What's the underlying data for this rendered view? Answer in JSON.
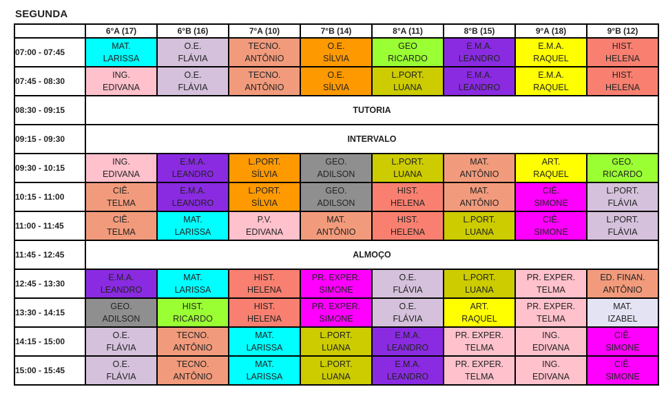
{
  "day": "SEGUNDA",
  "columns": [
    "6°A (17)",
    "6°B (16)",
    "7°A (10)",
    "7°B (14)",
    "8°A (11)",
    "8°B (15)",
    "9°A (18)",
    "9°B (12)"
  ],
  "rows": [
    {
      "time": "07:00 - 07:45",
      "cells": [
        {
          "subject": "MAT.",
          "teacher": "LARISSA",
          "color": "azul"
        },
        {
          "subject": "O.E.",
          "teacher": "FLÁVIA",
          "color": "lilas"
        },
        {
          "subject": "TECNO.",
          "teacher": "ANTÔNIO",
          "color": "salmao"
        },
        {
          "subject": "O.E.",
          "teacher": "SÍLVIA",
          "color": "laranja"
        },
        {
          "subject": "GEO",
          "teacher": "RICARDO",
          "color": "verde"
        },
        {
          "subject": "E.M.A.",
          "teacher": "LEANDRO",
          "color": "roxo"
        },
        {
          "subject": "E.M.A.",
          "teacher": "RAQUEL",
          "color": "amarelo"
        },
        {
          "subject": "HIST.",
          "teacher": "HELENA",
          "color": "vermelho"
        }
      ]
    },
    {
      "time": "07:45 - 08:30",
      "cells": [
        {
          "subject": "ING.",
          "teacher": "EDIVANA",
          "color": "rosa"
        },
        {
          "subject": "O.E.",
          "teacher": "FLÁVIA",
          "color": "lilas"
        },
        {
          "subject": "TECNO.",
          "teacher": "ANTÔNIO",
          "color": "salmao"
        },
        {
          "subject": "O.E.",
          "teacher": "SÍLVIA",
          "color": "laranja"
        },
        {
          "subject": "L.PORT.",
          "teacher": "LUANA",
          "color": "oliva"
        },
        {
          "subject": "E.M.A.",
          "teacher": "LEANDRO",
          "color": "roxo"
        },
        {
          "subject": "E.M.A.",
          "teacher": "RAQUEL",
          "color": "amarelo"
        },
        {
          "subject": "HIST.",
          "teacher": "HELENA",
          "color": "vermelho"
        }
      ]
    },
    {
      "time": "08:30 - 09:15",
      "span": "TUTORIA"
    },
    {
      "time": "09:15 - 09:30",
      "span": "INTERVALO"
    },
    {
      "time": "09:30 - 10:15",
      "cells": [
        {
          "subject": "ING.",
          "teacher": "EDIVANA",
          "color": "rosa"
        },
        {
          "subject": "E.M.A.",
          "teacher": "LEANDRO",
          "color": "roxo"
        },
        {
          "subject": "L.PORT.",
          "teacher": "SÍLVIA",
          "color": "laranja"
        },
        {
          "subject": "GEO.",
          "teacher": "ADILSON",
          "color": "cinza"
        },
        {
          "subject": "L.PORT.",
          "teacher": "LUANA",
          "color": "oliva"
        },
        {
          "subject": "MAT.",
          "teacher": "ANTÔNIO",
          "color": "salmao"
        },
        {
          "subject": "ART.",
          "teacher": "RAQUEL",
          "color": "amarelo"
        },
        {
          "subject": "GEO.",
          "teacher": "RICARDO",
          "color": "verde"
        }
      ]
    },
    {
      "time": "10:15 - 11:00",
      "cells": [
        {
          "subject": "CIÊ.",
          "teacher": "TELMA",
          "color": "salmao"
        },
        {
          "subject": "E.M.A.",
          "teacher": "LEANDRO",
          "color": "roxo"
        },
        {
          "subject": "L.PORT.",
          "teacher": "SÍLVIA",
          "color": "laranja"
        },
        {
          "subject": "GEO.",
          "teacher": "ADILSON",
          "color": "cinza"
        },
        {
          "subject": "HIST.",
          "teacher": "HELENA",
          "color": "vermelho"
        },
        {
          "subject": "MAT.",
          "teacher": "ANTÔNIO",
          "color": "salmao"
        },
        {
          "subject": "CIÊ.",
          "teacher": "SIMONE",
          "color": "magenta"
        },
        {
          "subject": "L.PORT.",
          "teacher": "FLÁVIA",
          "color": "lilas"
        }
      ]
    },
    {
      "time": "11:00 - 11:45",
      "cells": [
        {
          "subject": "CIÊ.",
          "teacher": "TELMA",
          "color": "salmao"
        },
        {
          "subject": "MAT.",
          "teacher": "LARISSA",
          "color": "azul"
        },
        {
          "subject": "P.V.",
          "teacher": "EDIVANA",
          "color": "rosa"
        },
        {
          "subject": "MAT.",
          "teacher": "ANTÔNIO",
          "color": "salmao"
        },
        {
          "subject": "HIST.",
          "teacher": "HELENA",
          "color": "vermelho"
        },
        {
          "subject": "L.PORT.",
          "teacher": "LUANA",
          "color": "oliva"
        },
        {
          "subject": "CIÊ.",
          "teacher": "SIMONE",
          "color": "magenta"
        },
        {
          "subject": "L.PORT.",
          "teacher": "FLÁVIA",
          "color": "lilas"
        }
      ]
    },
    {
      "time": "11:45 - 12:45",
      "span": "ALMOÇO"
    },
    {
      "time": "12:45 - 13:30",
      "cells": [
        {
          "subject": "E.M.A.",
          "teacher": "LEANDRO",
          "color": "roxo"
        },
        {
          "subject": "MAT.",
          "teacher": "LARISSA",
          "color": "azul"
        },
        {
          "subject": "HIST.",
          "teacher": "HELENA",
          "color": "vermelho"
        },
        {
          "subject": "PR. EXPER.",
          "teacher": "SIMONE",
          "color": "magenta"
        },
        {
          "subject": "O.E.",
          "teacher": "FLÁVIA",
          "color": "lilas"
        },
        {
          "subject": "L.PORT.",
          "teacher": "LUANA",
          "color": "oliva"
        },
        {
          "subject": "PR. EXPER.",
          "teacher": "TELMA",
          "color": "rosa"
        },
        {
          "subject": "ED. FINAN.",
          "teacher": "ANTÔNIO",
          "color": "salmao"
        }
      ]
    },
    {
      "time": "13:30 - 14:15",
      "cells": [
        {
          "subject": "GEO.",
          "teacher": "ADILSON",
          "color": "cinza"
        },
        {
          "subject": "HIST.",
          "teacher": "RICARDO",
          "color": "verde"
        },
        {
          "subject": "HIST.",
          "teacher": "HELENA",
          "color": "vermelho"
        },
        {
          "subject": "PR. EXPER.",
          "teacher": "SIMONE",
          "color": "magenta"
        },
        {
          "subject": "O.E.",
          "teacher": "FLÁVIA",
          "color": "lilas"
        },
        {
          "subject": "ART.",
          "teacher": "RAQUEL",
          "color": "amarelo"
        },
        {
          "subject": "PR. EXPER.",
          "teacher": "TELMA",
          "color": "rosa"
        },
        {
          "subject": "MAT.",
          "teacher": "IZABEL",
          "color": "cinzaclaro"
        }
      ]
    },
    {
      "time": "14:15 - 15:00",
      "cells": [
        {
          "subject": "O.E.",
          "teacher": "FLÁVIA",
          "color": "lilas"
        },
        {
          "subject": "TECNO.",
          "teacher": "ANTÔNIO",
          "color": "salmao"
        },
        {
          "subject": "MAT.",
          "teacher": "LARISSA",
          "color": "azul"
        },
        {
          "subject": "L.PORT.",
          "teacher": "LUANA",
          "color": "oliva"
        },
        {
          "subject": "E.M.A.",
          "teacher": "LEANDRO",
          "color": "roxo"
        },
        {
          "subject": "PR. EXPER.",
          "teacher": "TELMA",
          "color": "rosa"
        },
        {
          "subject": "ING.",
          "teacher": "EDIVANA",
          "color": "rosa"
        },
        {
          "subject": "CIÊ.",
          "teacher": "SIMONE",
          "color": "magenta"
        }
      ]
    },
    {
      "time": "15:00 - 15:45",
      "cells": [
        {
          "subject": "O.E.",
          "teacher": "FLÁVIA",
          "color": "lilas"
        },
        {
          "subject": "TECNO.",
          "teacher": "ANTÔNIO",
          "color": "salmao"
        },
        {
          "subject": "MAT.",
          "teacher": "LARISSA",
          "color": "azul"
        },
        {
          "subject": "L.PORT.",
          "teacher": "LUANA",
          "color": "oliva"
        },
        {
          "subject": "E.M.A.",
          "teacher": "LEANDRO",
          "color": "roxo"
        },
        {
          "subject": "PR. EXPER.",
          "teacher": "TELMA",
          "color": "rosa"
        },
        {
          "subject": "ING.",
          "teacher": "EDIVANA",
          "color": "rosa"
        },
        {
          "subject": "CIÊ.",
          "teacher": "SIMONE",
          "color": "magenta"
        }
      ]
    }
  ]
}
